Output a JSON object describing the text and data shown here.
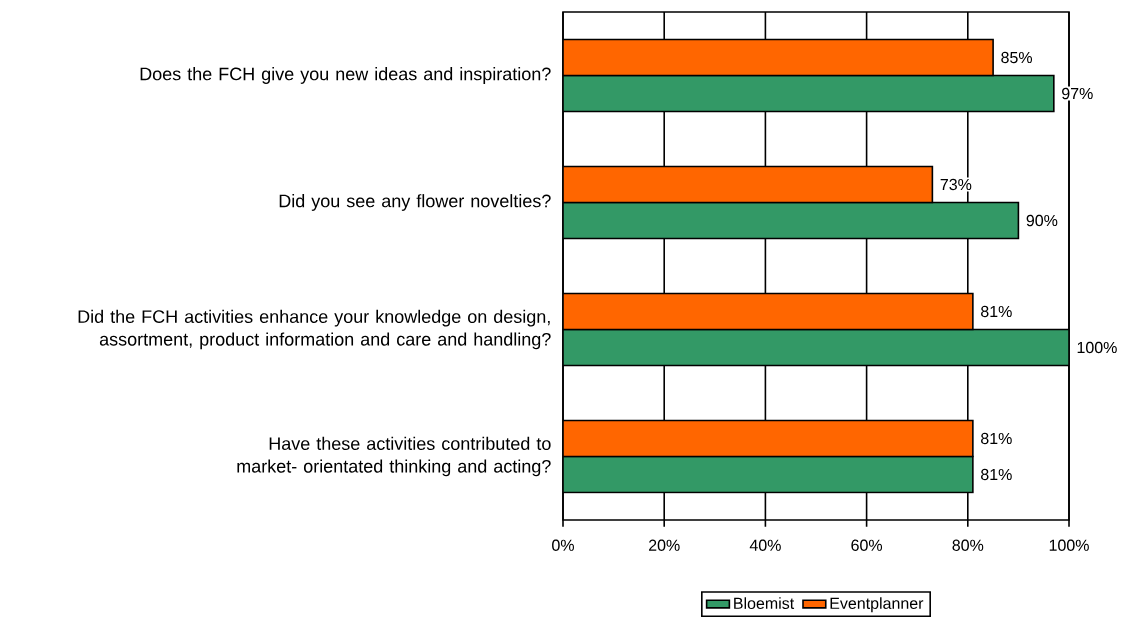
{
  "chart_data": {
    "type": "bar",
    "orientation": "horizontal",
    "categories": [
      "Does the FCH give you new ideas and inspiration?",
      "Did you see any flower novelties?",
      "Did the FCH activities enhance your knowledge on design, assortment, product information and care and handling?",
      "Have these activities contributed to market- orientated thinking and acting?"
    ],
    "series": [
      {
        "name": "Bloemist",
        "color": "#339966",
        "values": [
          97,
          90,
          100,
          81
        ],
        "value_labels": [
          "97%",
          "90%",
          "100%",
          "81%"
        ]
      },
      {
        "name": "Eventplanner",
        "color": "#ff6600",
        "values": [
          85,
          73,
          81,
          81
        ],
        "value_labels": [
          "85%",
          "73%",
          "81%",
          "81%"
        ]
      }
    ],
    "xlim": [
      0,
      100
    ],
    "xticks": [
      {
        "value": 0,
        "label": "0%"
      },
      {
        "value": 20,
        "label": "20%"
      },
      {
        "value": 40,
        "label": "40%"
      },
      {
        "value": 60,
        "label": "60%"
      },
      {
        "value": 80,
        "label": "80%"
      },
      {
        "value": 100,
        "label": "100%"
      }
    ],
    "grid": "x",
    "legend": "bottom"
  }
}
